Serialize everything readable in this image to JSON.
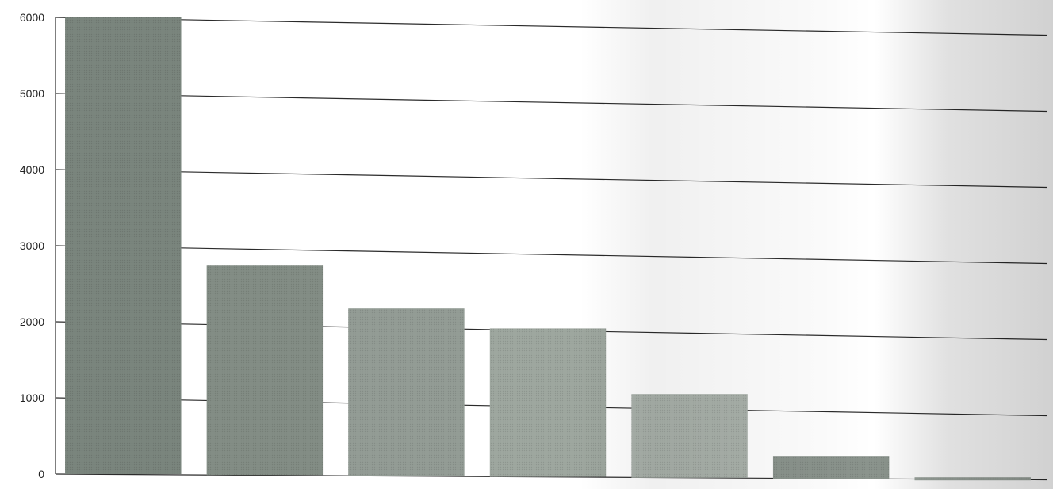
{
  "chart_data": {
    "type": "bar",
    "categories": [
      "",
      "",
      "",
      "",
      "",
      "",
      ""
    ],
    "values": [
      6000,
      2760,
      2200,
      1950,
      1100,
      300,
      -50
    ],
    "ylim": [
      0,
      6000
    ],
    "yticks": [
      0,
      1000,
      2000,
      3000,
      4000,
      5000,
      6000
    ],
    "grid": true,
    "colors": {
      "bars": [
        "#7a857d",
        "#838d85",
        "#939c95",
        "#9ea79f",
        "#aab2ab",
        "#8b948d",
        "#9aa39c"
      ],
      "gridline": "#2b2b2b",
      "axis": "#2b2b2b"
    }
  }
}
